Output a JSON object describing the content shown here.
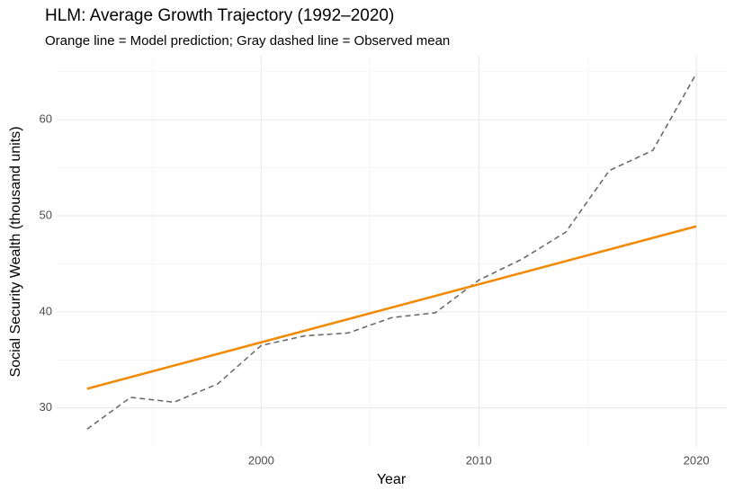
{
  "chart_data": {
    "type": "line",
    "title": "HLM: Average Growth Trajectory (1992–2020)",
    "subtitle": "Orange line = Model prediction; Gray dashed line = Observed mean",
    "x_label": "Year",
    "y_label": "Social Security Wealth (thousand units)",
    "xlim": [
      1990.6,
      2021.4
    ],
    "xticks": [
      2000,
      2010,
      2020
    ],
    "xminor": [
      1995,
      2005,
      2015
    ],
    "ylim": [
      25.95,
      66.65
    ],
    "yticks": [
      30,
      40,
      50,
      60
    ],
    "yminor": [
      35,
      45,
      55,
      65
    ],
    "grid": true,
    "series": [
      {
        "color": "#6b6b6b",
        "dashed": true,
        "x": [
          1992,
          1994,
          1996,
          1998,
          2000,
          2002,
          2004,
          2006,
          2008,
          2010,
          2012,
          2014,
          2016,
          2018,
          2020
        ],
        "values": [
          27.8,
          31.1,
          30.6,
          32.5,
          36.5,
          37.5,
          37.8,
          39.4,
          39.9,
          43.3,
          45.5,
          48.3,
          54.7,
          56.8,
          64.8
        ]
      },
      {
        "color": "#f28a00",
        "dashed": false,
        "x": [
          1992,
          2020
        ],
        "values": [
          32.0,
          48.9
        ]
      }
    ]
  }
}
